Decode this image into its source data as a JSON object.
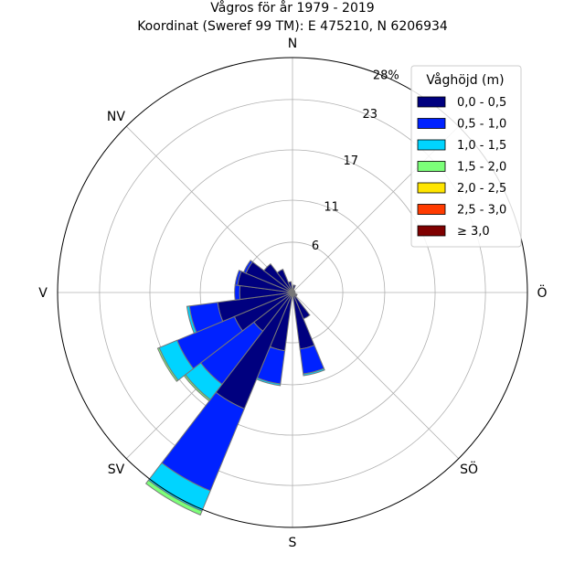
{
  "chart_data": {
    "type": "windrose",
    "title": "Vågros för år 1979 - 2019",
    "subtitle": "Koordinat (Sweref 99 TM): E 475210, N 6206934",
    "directions": [
      {
        "label": "N",
        "angle": 0
      },
      {
        "label": "Ö",
        "angle": 90
      },
      {
        "label": "SÖ",
        "angle": 135
      },
      {
        "label": "S",
        "angle": 180
      },
      {
        "label": "SV",
        "angle": 225
      },
      {
        "label": "V",
        "angle": 270
      },
      {
        "label": "NV",
        "angle": 315
      }
    ],
    "radial_ticks": [
      {
        "value": 6,
        "label": "6"
      },
      {
        "value": 11,
        "label": "11"
      },
      {
        "value": 17,
        "label": "17"
      },
      {
        "value": 23,
        "label": "23"
      },
      {
        "value": 28,
        "label": "28%"
      }
    ],
    "r_max": 28,
    "grid": true,
    "legend": {
      "title": "Våghöjd (m)",
      "placement": "top-right",
      "classes": [
        "0,0 - 0,5",
        "0,5 - 1,0",
        "1,0 - 1,5",
        "1,5 - 2,0",
        "2,0 - 2,5",
        "2,5 - 3,0",
        "≥ 3,0"
      ],
      "colors": [
        "#00007f",
        "#0022ff",
        "#00d4ff",
        "#7cff79",
        "#ffe500",
        "#ff3b00",
        "#7f0000"
      ]
    },
    "sector_width_deg": 15,
    "sectors": [
      {
        "direction": 0,
        "values": [
          0.5,
          0.0,
          0.0,
          0.0,
          0.0,
          0.0,
          0.0
        ]
      },
      {
        "direction": 15,
        "values": [
          0.9,
          0.0,
          0.0,
          0.0,
          0.0,
          0.0,
          0.0
        ]
      },
      {
        "direction": 30,
        "values": [
          0.3,
          0.0,
          0.0,
          0.0,
          0.0,
          0.0,
          0.0
        ]
      },
      {
        "direction": 45,
        "values": [
          0.3,
          0.0,
          0.0,
          0.0,
          0.0,
          0.0,
          0.0
        ]
      },
      {
        "direction": 60,
        "values": [
          0.3,
          0.0,
          0.0,
          0.0,
          0.0,
          0.0,
          0.0
        ]
      },
      {
        "direction": 75,
        "values": [
          0.3,
          0.0,
          0.0,
          0.0,
          0.0,
          0.0,
          0.0
        ]
      },
      {
        "direction": 90,
        "values": [
          0.3,
          0.0,
          0.0,
          0.0,
          0.0,
          0.0,
          0.0
        ]
      },
      {
        "direction": 105,
        "values": [
          0.3,
          0.0,
          0.0,
          0.0,
          0.0,
          0.0,
          0.0
        ]
      },
      {
        "direction": 120,
        "values": [
          0.6,
          0.0,
          0.0,
          0.0,
          0.0,
          0.0,
          0.0
        ]
      },
      {
        "direction": 135,
        "values": [
          0.6,
          0.0,
          0.0,
          0.0,
          0.0,
          0.0,
          0.0
        ]
      },
      {
        "direction": 150,
        "values": [
          3.4,
          0.0,
          0.0,
          0.0,
          0.0,
          0.0,
          0.0
        ]
      },
      {
        "direction": 165,
        "values": [
          6.8,
          3.0,
          0.2,
          0.0,
          0.0,
          0.0,
          0.0
        ]
      },
      {
        "direction": 180,
        "values": [
          0.5,
          0.0,
          0.0,
          0.0,
          0.0,
          0.0,
          0.0
        ]
      },
      {
        "direction": 195,
        "values": [
          7.0,
          4.0,
          0.2,
          0.0,
          0.0,
          0.0,
          0.0
        ]
      },
      {
        "direction": 210,
        "values": [
          15.0,
          10.6,
          2.6,
          0.5,
          0.0,
          0.0,
          0.0
        ]
      },
      {
        "direction": 225,
        "values": [
          5.8,
          8.0,
          2.3,
          0.2,
          0.0,
          0.0,
          0.0
        ]
      },
      {
        "direction": 240,
        "values": [
          7.5,
          7.4,
          2.3,
          0.2,
          0.0,
          0.0,
          0.0
        ]
      },
      {
        "direction": 255,
        "values": [
          9.0,
          3.4,
          0.3,
          0.0,
          0.0,
          0.0,
          0.0
        ]
      },
      {
        "direction": 270,
        "values": [
          6.3,
          0.6,
          0.0,
          0.0,
          0.0,
          0.0,
          0.0
        ]
      },
      {
        "direction": 285,
        "values": [
          6.6,
          0.3,
          0.0,
          0.0,
          0.0,
          0.0,
          0.0
        ]
      },
      {
        "direction": 300,
        "values": [
          6.0,
          0.3,
          0.0,
          0.0,
          0.0,
          0.0,
          0.0
        ]
      },
      {
        "direction": 315,
        "values": [
          4.3,
          0.0,
          0.0,
          0.0,
          0.0,
          0.0,
          0.0
        ]
      },
      {
        "direction": 330,
        "values": [
          3.0,
          0.0,
          0.0,
          0.0,
          0.0,
          0.0,
          0.0
        ]
      },
      {
        "direction": 345,
        "values": [
          1.3,
          0.0,
          0.0,
          0.0,
          0.0,
          0.0,
          0.0
        ]
      }
    ]
  }
}
